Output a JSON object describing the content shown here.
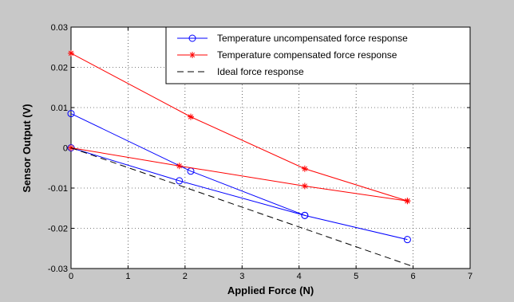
{
  "chart_data": {
    "type": "line",
    "xlabel": "Applied Force (N)",
    "ylabel": "Sensor Output (V)",
    "xlim": [
      0,
      7
    ],
    "ylim": [
      -0.03,
      0.03
    ],
    "xticks": [
      0,
      1,
      2,
      3,
      4,
      5,
      6,
      7
    ],
    "yticks": [
      -0.03,
      -0.02,
      -0.01,
      0,
      0.01,
      0.02,
      0.03
    ],
    "ytick_labels": [
      "-0.03",
      "-0.02",
      "-0.01",
      "0",
      "0.01",
      "0.02",
      "0.03"
    ],
    "grid": true,
    "legend_placement": "top-right",
    "series": [
      {
        "name": "Temperature uncompensated force response",
        "color": "#0000ff",
        "marker": "circle",
        "style": "solid",
        "segments": [
          {
            "x": [
              0,
              1.9,
              4.1,
              5.9
            ],
            "y": [
              0,
              -0.0082,
              -0.0168,
              -0.0228
            ]
          },
          {
            "x": [
              0,
              2.1,
              4.1
            ],
            "y": [
              0.0085,
              -0.0058,
              -0.0168
            ]
          }
        ]
      },
      {
        "name": "Temperature compensated force response",
        "color": "#ff0000",
        "marker": "star",
        "style": "solid",
        "segments": [
          {
            "x": [
              0,
              2.1,
              4.1,
              5.9
            ],
            "y": [
              0.0235,
              0.0077,
              -0.0052,
              -0.0132
            ]
          },
          {
            "x": [
              0,
              1.9,
              4.1,
              5.9
            ],
            "y": [
              0,
              -0.0045,
              -0.0095,
              -0.0132
            ]
          }
        ]
      },
      {
        "name": "Ideal force response",
        "color": "#000000",
        "marker": "none",
        "style": "dashed",
        "segments": [
          {
            "x": [
              0,
              6
            ],
            "y": [
              0,
              -0.0295
            ]
          }
        ]
      }
    ]
  }
}
